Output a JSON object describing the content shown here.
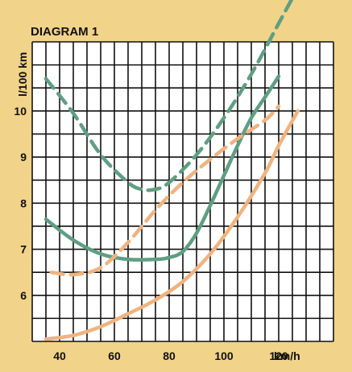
{
  "chart_data": {
    "type": "line",
    "title": "DIAGRAM 1",
    "xlabel": "km/h",
    "ylabel": "l/100 km",
    "xlim": [
      30,
      140
    ],
    "ylim": [
      5,
      11.5
    ],
    "x_ticks": [
      40,
      60,
      80,
      100,
      120
    ],
    "y_ticks": [
      6,
      7,
      8,
      9,
      10
    ],
    "grid": true,
    "colors": {
      "background": "#f2d38a",
      "grid": "#111111",
      "plot_area": "#ffffff",
      "green": "#5f9e83",
      "orange": "#f0b37f"
    },
    "series": [
      {
        "color": "#5f9e83",
        "dash": true,
        "x": [
          35,
          45,
          55,
          65,
          70,
          75,
          80,
          90,
          100,
          110,
          120,
          130
        ],
        "y": [
          10.7,
          9.95,
          9.05,
          8.45,
          8.3,
          8.3,
          8.45,
          9.05,
          9.85,
          10.8,
          11.9,
          13.0
        ]
      },
      {
        "color": "#5f9e83",
        "dash": false,
        "x": [
          35,
          45,
          55,
          65,
          75,
          80,
          85,
          90,
          95,
          100,
          105,
          110,
          115,
          120
        ],
        "y": [
          7.65,
          7.2,
          6.9,
          6.78,
          6.78,
          6.82,
          6.95,
          7.35,
          7.95,
          8.6,
          9.25,
          9.85,
          10.3,
          10.75
        ]
      },
      {
        "color": "#f0b37f",
        "dash": true,
        "x": [
          37,
          45,
          55,
          65,
          75,
          85,
          95,
          105,
          115,
          120
        ],
        "y": [
          6.5,
          6.45,
          6.6,
          7.15,
          7.85,
          8.45,
          8.95,
          9.4,
          9.8,
          10.1
        ]
      },
      {
        "color": "#f0b37f",
        "dash": false,
        "x": [
          35,
          45,
          55,
          65,
          75,
          85,
          95,
          105,
          115,
          120,
          127
        ],
        "y": [
          5.05,
          5.13,
          5.32,
          5.6,
          5.9,
          6.3,
          6.9,
          7.7,
          8.65,
          9.25,
          10.0
        ]
      }
    ]
  }
}
